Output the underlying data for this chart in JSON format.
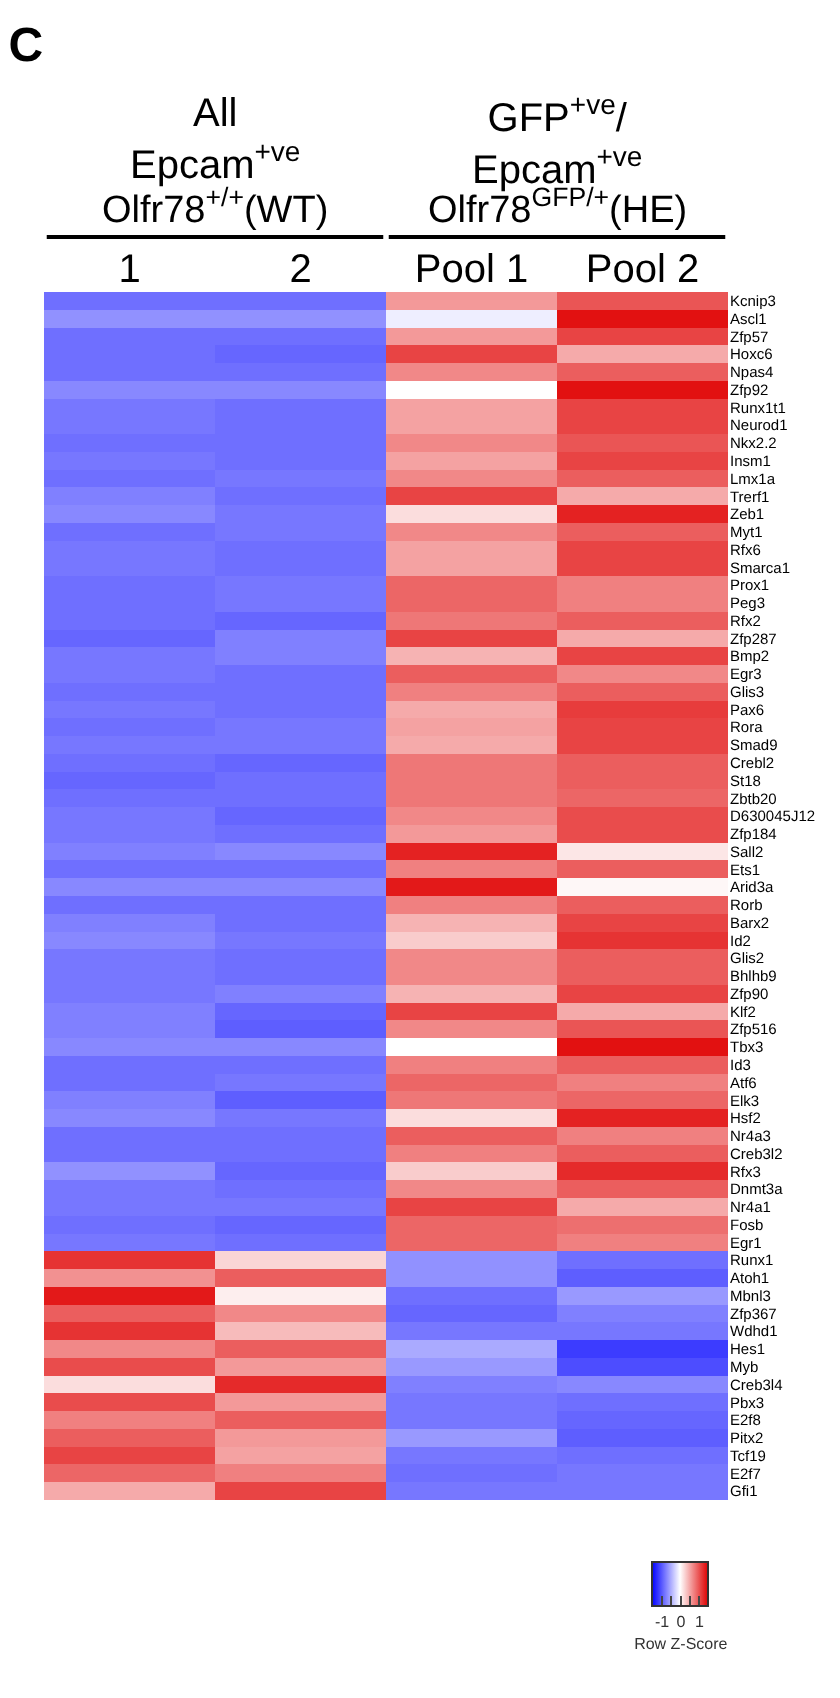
{
  "chart_data": {
    "type": "heatmap",
    "title": "C",
    "annotations": [
      "All\nEpcam$^{+ve}$",
      "Olfr78$^{+/+}$(WT)",
      "GFP$^{+ve}$/\nEpcam$^{+ve}$",
      "Olfr78$^{GFP/+}$(HE)"
    ],
    "categories": [
      "1",
      "2",
      "Pool 1",
      "Pool 2"
    ],
    "y_categories": [
      "Kcnip3",
      "Ascl1",
      "Zfp57",
      "Hoxc6",
      "Npas4",
      "Zfp92",
      "Runx1t1",
      "Neurod1",
      "Nkx2.2",
      "Insm1",
      "Lmx1a",
      "Trerf1",
      "Zeb1",
      "Myt1",
      "Rfx6",
      "Smarca1",
      "Prox1",
      "Peg3",
      "Rfx2",
      "Zfp287",
      "Bmp2",
      "Egr3",
      "Glis3",
      "Pax6",
      "Rora",
      "Smad9",
      "Crebl2",
      "St18",
      "Zbtb20",
      "D630045J12",
      "Zfp184",
      "Sall2",
      "Ets1",
      "Arid3a",
      "Rorb",
      "Barx2",
      "Id2",
      "Glis2",
      "Bhlhb9",
      "Zfp90",
      "Klf2",
      "Zfp516",
      "Tbx3",
      "Id3",
      "Atf6",
      "Elk3",
      "Hsf2",
      "Nr4a3",
      "Creb3l2",
      "Rfx3",
      "Dnmt3a",
      "Nr4a1",
      "Fosb",
      "Egr1",
      "Runx1",
      "Atoh1",
      "Mbnl3",
      "Zfp367",
      "Wdhd1",
      "Hes1",
      "Myb",
      "Creb3l4",
      "Pbx3",
      "E2f8",
      "Pitx2",
      "Tcf19",
      "E2f7",
      "Gfi1"
    ],
    "cells": [
      [
        -0.85,
        -0.85,
        0.6,
        1.0
      ],
      [
        -0.65,
        -0.65,
        -0.1,
        1.4
      ],
      [
        -0.85,
        -0.85,
        0.6,
        1.1
      ],
      [
        -0.85,
        -0.9,
        1.1,
        0.5
      ],
      [
        -0.85,
        -0.85,
        0.7,
        0.95
      ],
      [
        -0.7,
        -0.7,
        0.0,
        1.4
      ],
      [
        -0.8,
        -0.85,
        0.55,
        1.1
      ],
      [
        -0.8,
        -0.85,
        0.55,
        1.1
      ],
      [
        -0.85,
        -0.85,
        0.7,
        1.0
      ],
      [
        -0.8,
        -0.85,
        0.55,
        1.1
      ],
      [
        -0.85,
        -0.8,
        0.7,
        0.95
      ],
      [
        -0.75,
        -0.85,
        1.1,
        0.5
      ],
      [
        -0.7,
        -0.8,
        0.2,
        1.3
      ],
      [
        -0.85,
        -0.8,
        0.7,
        0.95
      ],
      [
        -0.8,
        -0.85,
        0.55,
        1.1
      ],
      [
        -0.8,
        -0.85,
        0.55,
        1.1
      ],
      [
        -0.85,
        -0.8,
        0.9,
        0.75
      ],
      [
        -0.85,
        -0.8,
        0.9,
        0.75
      ],
      [
        -0.85,
        -0.9,
        0.8,
        0.95
      ],
      [
        -0.9,
        -0.75,
        1.1,
        0.5
      ],
      [
        -0.8,
        -0.75,
        0.45,
        1.1
      ],
      [
        -0.8,
        -0.85,
        0.95,
        0.7
      ],
      [
        -0.85,
        -0.85,
        0.75,
        0.95
      ],
      [
        -0.8,
        -0.85,
        0.5,
        1.15
      ],
      [
        -0.85,
        -0.8,
        0.55,
        1.1
      ],
      [
        -0.8,
        -0.8,
        0.5,
        1.1
      ],
      [
        -0.85,
        -0.9,
        0.8,
        0.95
      ],
      [
        -0.9,
        -0.85,
        0.8,
        0.95
      ],
      [
        -0.85,
        -0.85,
        0.8,
        0.9
      ],
      [
        -0.8,
        -0.9,
        0.7,
        1.05
      ],
      [
        -0.8,
        -0.85,
        0.6,
        1.05
      ],
      [
        -0.75,
        -0.7,
        1.3,
        0.15
      ],
      [
        -0.85,
        -0.85,
        0.75,
        0.95
      ],
      [
        -0.7,
        -0.7,
        1.35,
        0.05
      ],
      [
        -0.85,
        -0.85,
        0.75,
        0.95
      ],
      [
        -0.75,
        -0.85,
        0.45,
        1.1
      ],
      [
        -0.7,
        -0.8,
        0.3,
        1.2
      ],
      [
        -0.8,
        -0.85,
        0.7,
        0.95
      ],
      [
        -0.8,
        -0.85,
        0.7,
        0.95
      ],
      [
        -0.8,
        -0.75,
        0.45,
        1.1
      ],
      [
        -0.75,
        -0.9,
        1.1,
        0.5
      ],
      [
        -0.75,
        -0.95,
        0.7,
        1.0
      ],
      [
        -0.7,
        -0.7,
        0.0,
        1.4
      ],
      [
        -0.85,
        -0.85,
        0.75,
        0.95
      ],
      [
        -0.85,
        -0.8,
        0.9,
        0.75
      ],
      [
        -0.75,
        -0.95,
        0.8,
        0.9
      ],
      [
        -0.7,
        -0.8,
        0.2,
        1.3
      ],
      [
        -0.85,
        -0.85,
        0.95,
        0.75
      ],
      [
        -0.85,
        -0.85,
        0.75,
        0.95
      ],
      [
        -0.65,
        -0.9,
        0.3,
        1.25
      ],
      [
        -0.8,
        -0.85,
        0.7,
        0.95
      ],
      [
        -0.8,
        -0.8,
        1.1,
        0.5
      ],
      [
        -0.85,
        -0.9,
        0.9,
        0.85
      ],
      [
        -0.8,
        -0.85,
        0.9,
        0.75
      ],
      [
        1.2,
        0.25,
        -0.65,
        -0.85
      ],
      [
        0.65,
        0.95,
        -0.65,
        -0.95
      ],
      [
        1.35,
        0.1,
        -0.85,
        -0.6
      ],
      [
        0.95,
        0.7,
        -0.9,
        -0.75
      ],
      [
        1.2,
        0.4,
        -0.8,
        -0.8
      ],
      [
        0.7,
        0.95,
        -0.5,
        -1.15
      ],
      [
        1.05,
        0.6,
        -0.6,
        -1.05
      ],
      [
        0.2,
        1.25,
        -0.75,
        -0.7
      ],
      [
        1.05,
        0.6,
        -0.8,
        -0.85
      ],
      [
        0.75,
        0.95,
        -0.8,
        -0.9
      ],
      [
        0.95,
        0.6,
        -0.6,
        -0.95
      ],
      [
        1.1,
        0.55,
        -0.8,
        -0.85
      ],
      [
        0.9,
        0.75,
        -0.85,
        -0.8
      ],
      [
        0.5,
        1.1,
        -0.8,
        -0.8
      ]
    ],
    "clim": [
      -1.5,
      1.5
    ],
    "cticks": [
      -1,
      {
        "value": -0.5,
        "label": null
      },
      0,
      {
        "value": 0.5,
        "label": null
      },
      1
    ],
    "clabel": "Row Z-Score"
  }
}
